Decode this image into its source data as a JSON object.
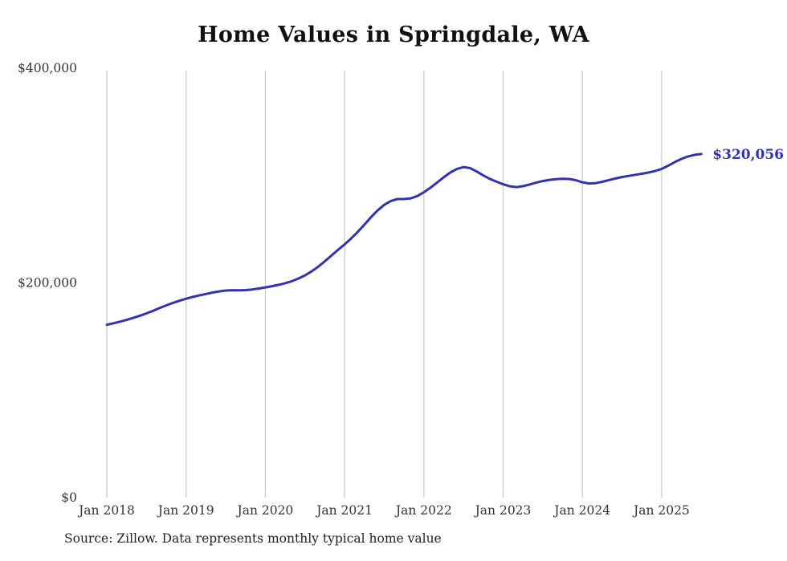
{
  "title": "Home Values in Springdale, WA",
  "source_note": "Source: Zillow. Data represents monthly typical home value",
  "end_label": "$320,056",
  "colors": {
    "line": "#3333b2",
    "grid": "#cccccc",
    "title": "#111111",
    "axis_text": "#333333",
    "end_label": "#3333b2"
  },
  "chart_data": {
    "type": "line",
    "title": "Home Values in Springdale, WA",
    "xlabel": "",
    "ylabel": "",
    "ylim": [
      0,
      400000
    ],
    "x_start": "Jan 2018",
    "x_end": "Jul 2025",
    "grid": "vertical-only",
    "legend": "none",
    "x_ticks": [
      "Jan 2018",
      "Jan 2019",
      "Jan 2020",
      "Jan 2021",
      "Jan 2022",
      "Jan 2023",
      "Jan 2024",
      "Jan 2025"
    ],
    "y_ticks": [
      {
        "label": "$0",
        "value": 0
      },
      {
        "label": "$200,000",
        "value": 200000
      },
      {
        "label": "$400,000",
        "value": 400000
      }
    ],
    "final_value": 320056,
    "series": [
      {
        "name": "Monthly typical home value",
        "values": [
          161000,
          162400,
          163900,
          165500,
          167400,
          169400,
          171600,
          174000,
          176600,
          179100,
          181400,
          183400,
          185300,
          186900,
          188300,
          189700,
          191000,
          192100,
          192900,
          193200,
          193100,
          193300,
          193900,
          194800,
          195800,
          196900,
          198200,
          199700,
          201600,
          204000,
          207000,
          210700,
          215100,
          220100,
          225400,
          230700,
          235900,
          241400,
          247600,
          254300,
          261200,
          267500,
          272700,
          276300,
          278100,
          278100,
          278700,
          280900,
          284400,
          288700,
          293500,
          298400,
          302800,
          306100,
          307900,
          307000,
          303800,
          300100,
          296900,
          294300,
          291900,
          290000,
          289300,
          290100,
          291700,
          293400,
          294900,
          296000,
          296700,
          297000,
          296800,
          295700,
          293700,
          292600,
          292900,
          294200,
          295800,
          297300,
          298600,
          299700,
          300700,
          301700,
          302800,
          304200,
          306200,
          309200,
          312600,
          315500,
          317800,
          319300,
          320056
        ]
      }
    ]
  }
}
